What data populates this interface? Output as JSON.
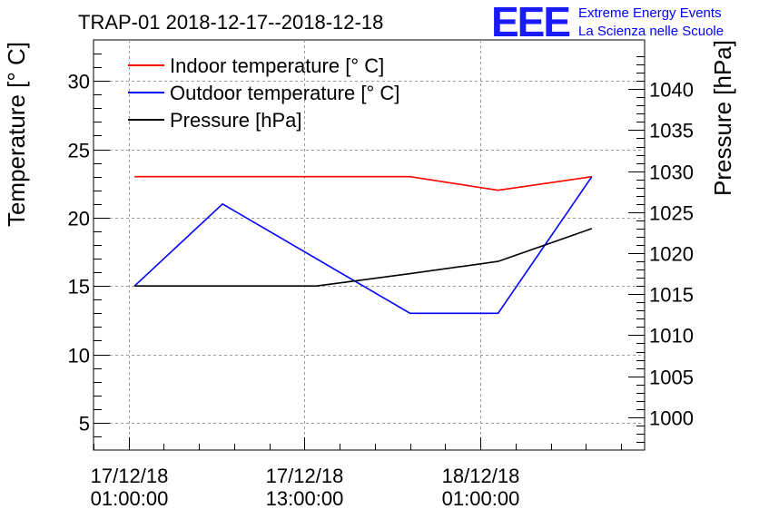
{
  "header": {
    "title": "TRAP-01 2018-12-17--2018-12-18",
    "logo_text": "EEE",
    "org_line1": "Extreme Energy Events",
    "org_line2": "La Scienza nelle Scuole"
  },
  "chart_data": {
    "type": "line",
    "title": "TRAP-01 2018-12-17--2018-12-18",
    "xlabel": "",
    "ylabel_left": "Temperature [° C]",
    "ylabel_right": "Pressure [hPa]",
    "ylim_left": [
      3,
      33
    ],
    "ylim_right": [
      996,
      1046
    ],
    "xlim_hours": [
      -3,
      44
    ],
    "x_ticks": [
      {
        "hour": 0,
        "line1": "17/12/18",
        "line2": "01:00:00"
      },
      {
        "hour": 15,
        "line1": "17/12/18",
        "line2": "13:00:00"
      },
      {
        "hour": 30,
        "line1": "18/12/18",
        "line2": "01:00:00"
      }
    ],
    "left_ticks": [
      5,
      10,
      15,
      20,
      25,
      30
    ],
    "right_ticks": [
      1000,
      1005,
      1010,
      1015,
      1020,
      1025,
      1030,
      1035,
      1040
    ],
    "grid": true,
    "legend_position": "top-left",
    "series": [
      {
        "name": "Indoor temperature [° C]",
        "axis": "left",
        "color": "#ff0000",
        "x": [
          0.5,
          8,
          16,
          24,
          31.5,
          39.5
        ],
        "y": [
          23,
          23,
          23,
          23,
          22,
          23
        ]
      },
      {
        "name": "Outdoor temperature [° C]",
        "axis": "left",
        "color": "#0000ff",
        "x": [
          0.5,
          8,
          24,
          31.5,
          39.5
        ],
        "y": [
          15,
          21,
          13,
          13,
          23
        ]
      },
      {
        "name": "Pressure [hPa]",
        "axis": "right",
        "color": "#000000",
        "x": [
          0.5,
          8,
          16,
          24,
          31.5,
          39.5
        ],
        "y": [
          1016,
          1016,
          1016,
          1017.5,
          1019,
          1023
        ]
      }
    ]
  }
}
